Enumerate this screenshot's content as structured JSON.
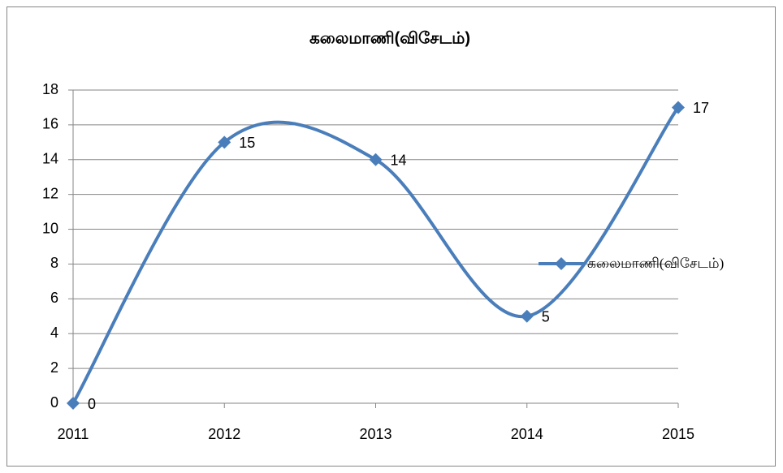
{
  "chart_data": {
    "type": "line",
    "title": "கலைமாணி(விசேடம்)",
    "categories": [
      "2011",
      "2012",
      "2013",
      "2014",
      "2015"
    ],
    "series": [
      {
        "name": "கலைமாணி(விசேடம்)",
        "color": "#4a7ebb",
        "values": [
          0,
          15,
          14,
          5,
          17
        ]
      }
    ],
    "ylim": [
      0,
      18
    ],
    "yticks": [
      0,
      2,
      4,
      6,
      8,
      10,
      12,
      14,
      16,
      18
    ],
    "grid": true,
    "smooth": true,
    "data_labels": true,
    "legend": "right"
  }
}
